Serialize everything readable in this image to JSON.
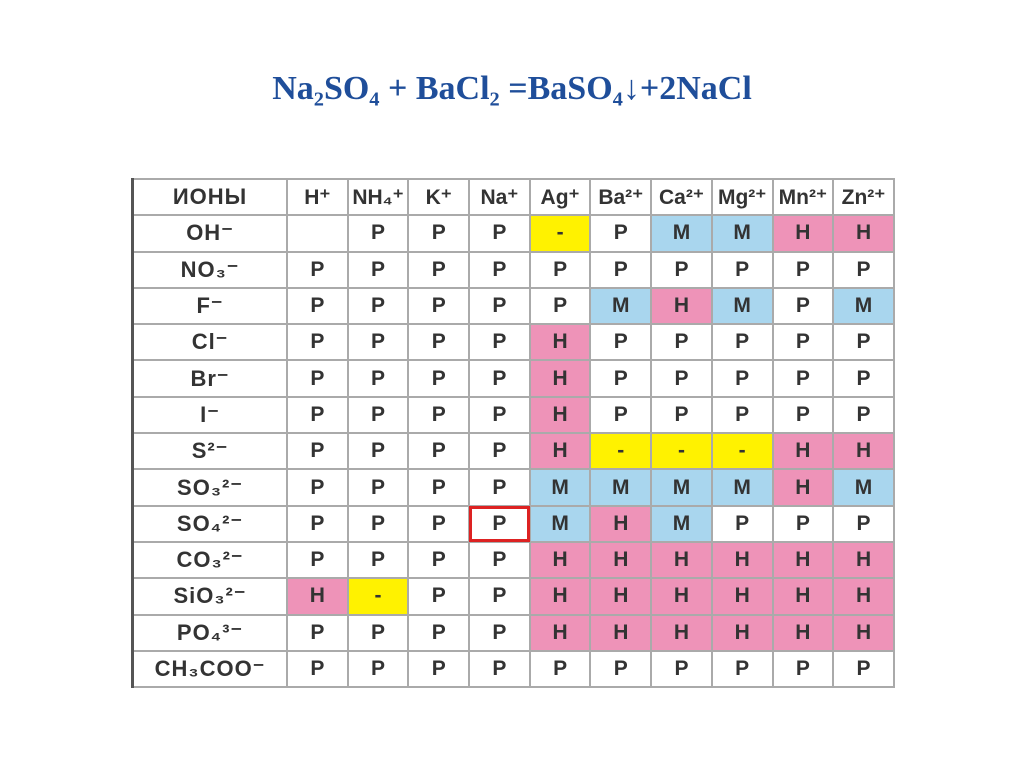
{
  "title": "Na₂SO₄ + BaCl₂ =BaSO₄↓+2NaCl",
  "table": {
    "columns": [
      "ИОНЫ",
      "H⁺",
      "NH₄⁺",
      "K⁺",
      "Na⁺",
      "Ag⁺",
      "Ba²⁺",
      "Ca²⁺",
      "Mg²⁺",
      "Mn²⁺",
      "Zn²⁺"
    ],
    "fill_by_value": {
      "Р": "#ffffff",
      "М": "#a9d6ee",
      "Н": "#ee93b8",
      "-": "#fff200"
    },
    "highlight": [
      8,
      4
    ],
    "rows": [
      [
        "OH⁻",
        "",
        "Р",
        "Р",
        "Р",
        "-",
        "Р",
        "М",
        "М",
        "Н",
        "Н"
      ],
      [
        "NO₃⁻",
        "Р",
        "Р",
        "Р",
        "Р",
        "Р",
        "Р",
        "Р",
        "Р",
        "Р",
        "Р"
      ],
      [
        "F⁻",
        "Р",
        "Р",
        "Р",
        "Р",
        "Р",
        "М",
        "Н",
        "М",
        "Р",
        "М"
      ],
      [
        "Cl⁻",
        "Р",
        "Р",
        "Р",
        "Р",
        "Н",
        "Р",
        "Р",
        "Р",
        "Р",
        "Р"
      ],
      [
        "Br⁻",
        "Р",
        "Р",
        "Р",
        "Р",
        "Н",
        "Р",
        "Р",
        "Р",
        "Р",
        "Р"
      ],
      [
        "I⁻",
        "Р",
        "Р",
        "Р",
        "Р",
        "Н",
        "Р",
        "Р",
        "Р",
        "Р",
        "Р"
      ],
      [
        "S²⁻",
        "Р",
        "Р",
        "Р",
        "Р",
        "Н",
        "-",
        "-",
        "-",
        "Н",
        "Н"
      ],
      [
        "SO₃²⁻",
        "Р",
        "Р",
        "Р",
        "Р",
        "М",
        "М",
        "М",
        "М",
        "Н",
        "М"
      ],
      [
        "SO₄²⁻",
        "Р",
        "Р",
        "Р",
        "Р",
        "М",
        "Н",
        "М",
        "Р",
        "Р",
        "Р"
      ],
      [
        "CO₃²⁻",
        "Р",
        "Р",
        "Р",
        "Р",
        "Н",
        "Н",
        "Н",
        "Н",
        "Н",
        "Н"
      ],
      [
        "SiO₃²⁻",
        "Н",
        "-",
        "Р",
        "Р",
        "Н",
        "Н",
        "Н",
        "Н",
        "Н",
        "Н"
      ],
      [
        "PO₄³⁻",
        "Р",
        "Р",
        "Р",
        "Р",
        "Н",
        "Н",
        "Н",
        "Н",
        "Н",
        "Н"
      ],
      [
        "CH₃COO⁻",
        "Р",
        "Р",
        "Р",
        "Р",
        "Р",
        "Р",
        "Р",
        "Р",
        "Р",
        "Р"
      ]
    ]
  }
}
